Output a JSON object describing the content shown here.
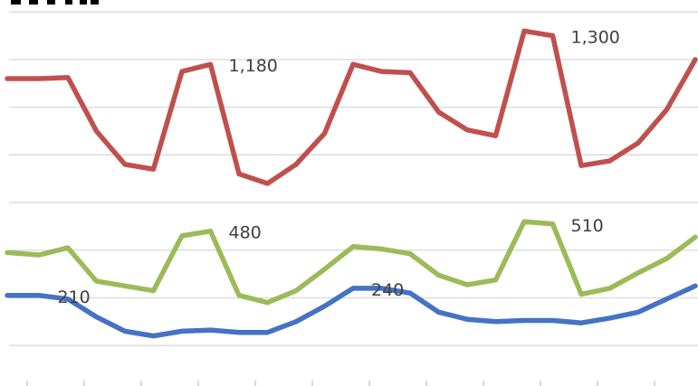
{
  "chart_data": {
    "type": "line",
    "title": "",
    "xlabel": "",
    "ylabel": "",
    "ylim": [
      -170,
      1450
    ],
    "grid": true,
    "legend": "none",
    "x_count": 25,
    "series": [
      {
        "color": "#c0504d",
        "values": [
          1120,
          1120,
          1125,
          900,
          760,
          740,
          1150,
          1180,
          720,
          680,
          760,
          890,
          1180,
          1150,
          1145,
          980,
          905,
          880,
          1320,
          1300,
          755,
          775,
          850,
          990,
          1200
        ]
      },
      {
        "color": "#9bbb59",
        "values": [
          390,
          380,
          410,
          270,
          250,
          230,
          460,
          480,
          210,
          180,
          230,
          320,
          415,
          405,
          385,
          295,
          255,
          275,
          520,
          510,
          215,
          240,
          305,
          365,
          455
        ]
      },
      {
        "color": "#4472c4",
        "values": [
          210,
          210,
          195,
          120,
          60,
          40,
          60,
          65,
          55,
          55,
          100,
          165,
          240,
          240,
          220,
          140,
          110,
          100,
          105,
          105,
          95,
          115,
          140,
          195,
          250
        ]
      }
    ],
    "data_labels": [
      {
        "series": 0,
        "index": 7,
        "text": "1,180"
      },
      {
        "series": 0,
        "index": 19,
        "text": "1,300"
      },
      {
        "series": 1,
        "index": 7,
        "text": "480"
      },
      {
        "series": 1,
        "index": 19,
        "text": "510"
      },
      {
        "series": 2,
        "index": 1,
        "text": "210"
      },
      {
        "series": 2,
        "index": 12,
        "text": "240"
      }
    ]
  }
}
